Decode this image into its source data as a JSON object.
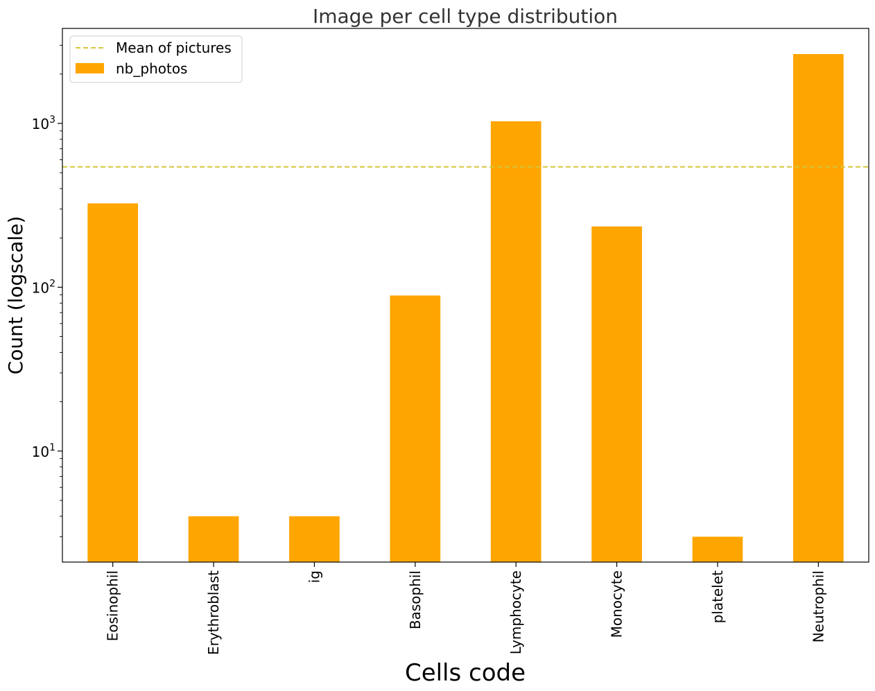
{
  "chart_data": {
    "type": "bar",
    "title": "Image per cell type distribution",
    "xlabel": "Cells code",
    "ylabel": "Count (logscale)",
    "yscale": "log",
    "ylim": [
      2.1,
      3800
    ],
    "categories": [
      "Eosinophil",
      "Erythroblast",
      "ig",
      "Basophil",
      "Lymphocyte",
      "Monocyte",
      "platelet",
      "Neutrophil"
    ],
    "series": [
      {
        "name": "nb_photos",
        "color": "#ffa500",
        "values": [
          325,
          4,
          4,
          89,
          1030,
          235,
          3,
          2650
        ]
      }
    ],
    "mean_line": {
      "name": "Mean of pictures",
      "value": 543,
      "color": "#d4c63a"
    },
    "y_ticks": [
      {
        "value": 10,
        "base": "10",
        "exp": "1"
      },
      {
        "value": 100,
        "base": "10",
        "exp": "2"
      },
      {
        "value": 1000,
        "base": "10",
        "exp": "3"
      }
    ],
    "legend": {
      "placement": "top-left"
    },
    "grid": false
  }
}
